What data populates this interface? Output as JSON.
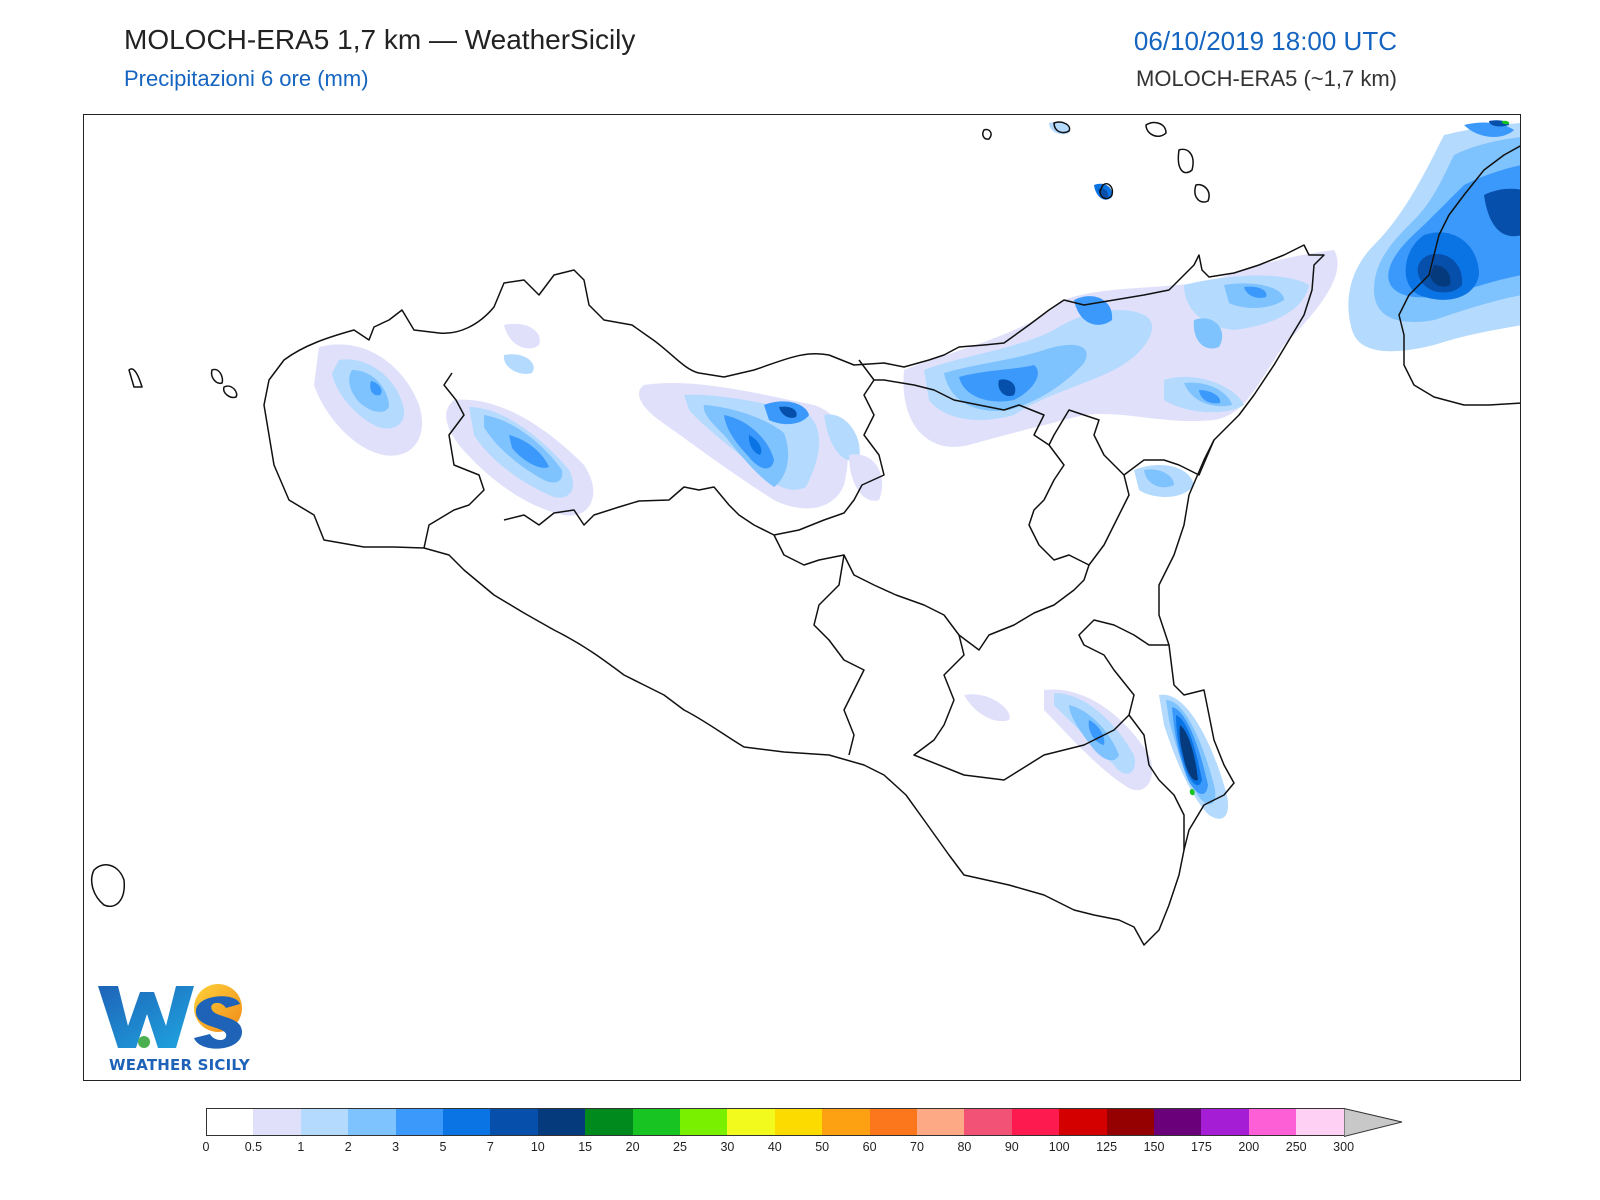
{
  "header": {
    "title": "MOLOCH-ERA5 1,7 km — WeatherSicily",
    "subtitle": "Precipitazioni 6 ore (mm)",
    "datetime": "06/10/2019 18:00 UTC",
    "model": "MOLOCH-ERA5 (~1,7 km)"
  },
  "logo": {
    "text": "WEATHER SICILY",
    "letters": "WS"
  },
  "legend": {
    "ticks": [
      "0",
      "0.5",
      "1",
      "2",
      "3",
      "5",
      "7",
      "10",
      "15",
      "20",
      "25",
      "30",
      "40",
      "50",
      "60",
      "70",
      "80",
      "90",
      "100",
      "125",
      "150",
      "175",
      "200",
      "250",
      "300"
    ],
    "colors": [
      "#ffffff",
      "#e0e0fb",
      "#b4dafe",
      "#7ec2fe",
      "#3b99fb",
      "#0b74e4",
      "#0650ab",
      "#053a7c",
      "#008a1e",
      "#18c422",
      "#78f000",
      "#f2f91c",
      "#fcdc00",
      "#fda112",
      "#fc771b",
      "#fea985",
      "#f35277",
      "#fc1a4e",
      "#d40000",
      "#950000",
      "#6a007a",
      "#a51ed6",
      "#fd5fd6",
      "#fdd0f4"
    ],
    "overflow_color": "#c8c8c8"
  },
  "map": {
    "coast_color": "#111111",
    "precip_levels": [
      {
        "level": "0.5",
        "color": "#e0e0fb"
      },
      {
        "level": "1",
        "color": "#b4dafe"
      },
      {
        "level": "2",
        "color": "#7ec2fe"
      },
      {
        "level": "3",
        "color": "#3b99fb"
      },
      {
        "level": "5",
        "color": "#0b74e4"
      },
      {
        "level": "7",
        "color": "#0650ab"
      },
      {
        "level": "10",
        "color": "#053a7c"
      },
      {
        "level": "15",
        "color": "#008a1e"
      }
    ]
  }
}
